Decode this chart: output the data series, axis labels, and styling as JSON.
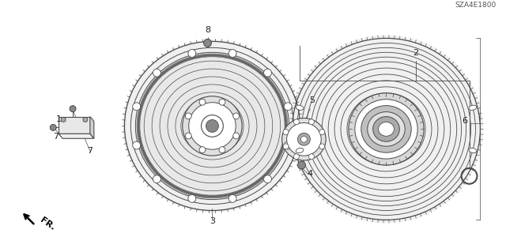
{
  "bg_color": "#ffffff",
  "line_color": "#4a4a4a",
  "fig_width": 6.4,
  "fig_height": 3.19,
  "dpi": 100,
  "footer_code": "SZA4E1800"
}
